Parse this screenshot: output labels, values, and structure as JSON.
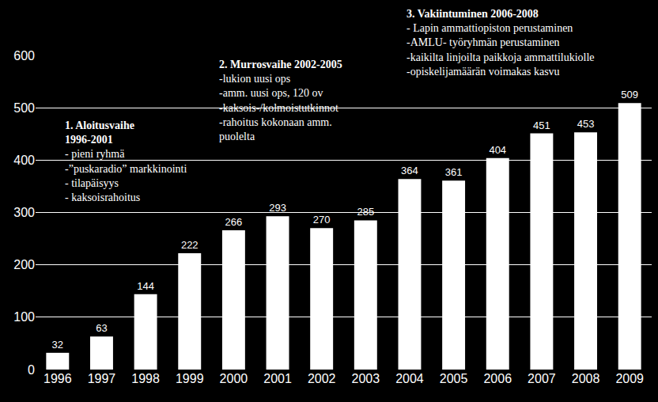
{
  "chart_data": {
    "type": "bar",
    "categories": [
      "1996",
      "1997",
      "1998",
      "1999",
      "2000",
      "2001",
      "2002",
      "2003",
      "2004",
      "2005",
      "2006",
      "2007",
      "2008",
      "2009"
    ],
    "values": [
      32,
      63,
      144,
      222,
      266,
      293,
      270,
      285,
      364,
      361,
      404,
      451,
      453,
      509
    ],
    "color": "#ffffff",
    "ylim": [
      0,
      600
    ],
    "yticks": [
      0,
      100,
      200,
      300,
      400,
      500,
      600
    ],
    "grid": true,
    "data_labels": true,
    "annotations": [
      {
        "heading": [
          "1. Aloitusvaihe",
          "1996-2001"
        ],
        "items": [
          "- pieni ryhmä",
          "-”puskaradio” markkinointi",
          "- tilapäisyys",
          "- kaksoisrahoitus"
        ]
      },
      {
        "heading": [
          "2. Murrosvaihe 2002-2005"
        ],
        "items": [
          "-lukion uusi ops",
          "-amm. uusi ops, 120 ov",
          "-kaksois-/kolmoistutkinnot",
          "-rahoitus kokonaan amm.",
          "puolelta"
        ]
      },
      {
        "heading": [
          "3. Vakiintuminen 2006-2008"
        ],
        "items": [
          "- Lapin ammattiopiston perustaminen",
          "-AMLU- työryhmän perustaminen",
          "-kaikilta linjoilta paikkoja ammattilukiolle",
          "-opiskelijamäärän voimakas kasvu"
        ]
      }
    ]
  }
}
